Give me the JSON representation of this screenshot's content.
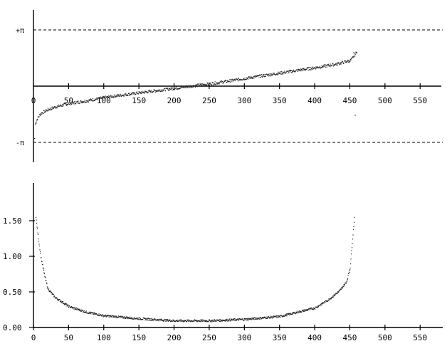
{
  "chart_data": [
    {
      "type": "scatter",
      "title": "",
      "xlabel": "",
      "ylabel": "",
      "xlim": [
        0,
        570
      ],
      "ylim": [
        -3.3,
        3.3
      ],
      "x_ticks": [
        0,
        50,
        100,
        150,
        200,
        250,
        300,
        350,
        400,
        450,
        500,
        550
      ],
      "x_tick_labels": [
        "0",
        "50",
        "100",
        "150",
        "200",
        "250",
        "300",
        "350",
        "400",
        "450",
        "500",
        "550"
      ],
      "reference_lines": [
        {
          "y": 3.14159,
          "label": "+π"
        },
        {
          "y": -3.14159,
          "label": "-π"
        }
      ],
      "series": [
        {
          "x": [
            2,
            5,
            10,
            20,
            30,
            50,
            75,
            100,
            130,
            160,
            200,
            230,
            260,
            300,
            350,
            400,
            430,
            450,
            455,
            460
          ],
          "y": [
            -2.1,
            -1.8,
            -1.5,
            -1.3,
            -1.15,
            -0.95,
            -0.8,
            -0.62,
            -0.45,
            -0.3,
            -0.1,
            0.05,
            0.2,
            0.45,
            0.75,
            1.05,
            1.25,
            1.45,
            1.65,
            2.0
          ]
        }
      ]
    },
    {
      "type": "scatter",
      "title": "",
      "xlabel": "",
      "ylabel": "",
      "xlim": [
        0,
        570
      ],
      "ylim": [
        0,
        2.0
      ],
      "x_ticks": [
        0,
        50,
        100,
        150,
        200,
        250,
        300,
        350,
        400,
        450,
        500,
        550
      ],
      "x_tick_labels": [
        "0",
        "50",
        "100",
        "150",
        "200",
        "250",
        "300",
        "350",
        "400",
        "450",
        "500",
        "550"
      ],
      "y_ticks": [
        0.0,
        0.5,
        1.0,
        1.5
      ],
      "y_tick_labels": [
        "0.00",
        "0.50",
        "1.00",
        "1.50"
      ],
      "series": [
        {
          "x": [
            3,
            6,
            10,
            15,
            20,
            30,
            50,
            75,
            100,
            150,
            200,
            250,
            300,
            350,
            400,
            420,
            435,
            445,
            450,
            453,
            456
          ],
          "y": [
            1.55,
            1.3,
            1.0,
            0.75,
            0.55,
            0.43,
            0.3,
            0.22,
            0.17,
            0.13,
            0.1,
            0.1,
            0.12,
            0.16,
            0.28,
            0.4,
            0.52,
            0.65,
            0.85,
            1.2,
            1.55
          ]
        }
      ]
    }
  ]
}
